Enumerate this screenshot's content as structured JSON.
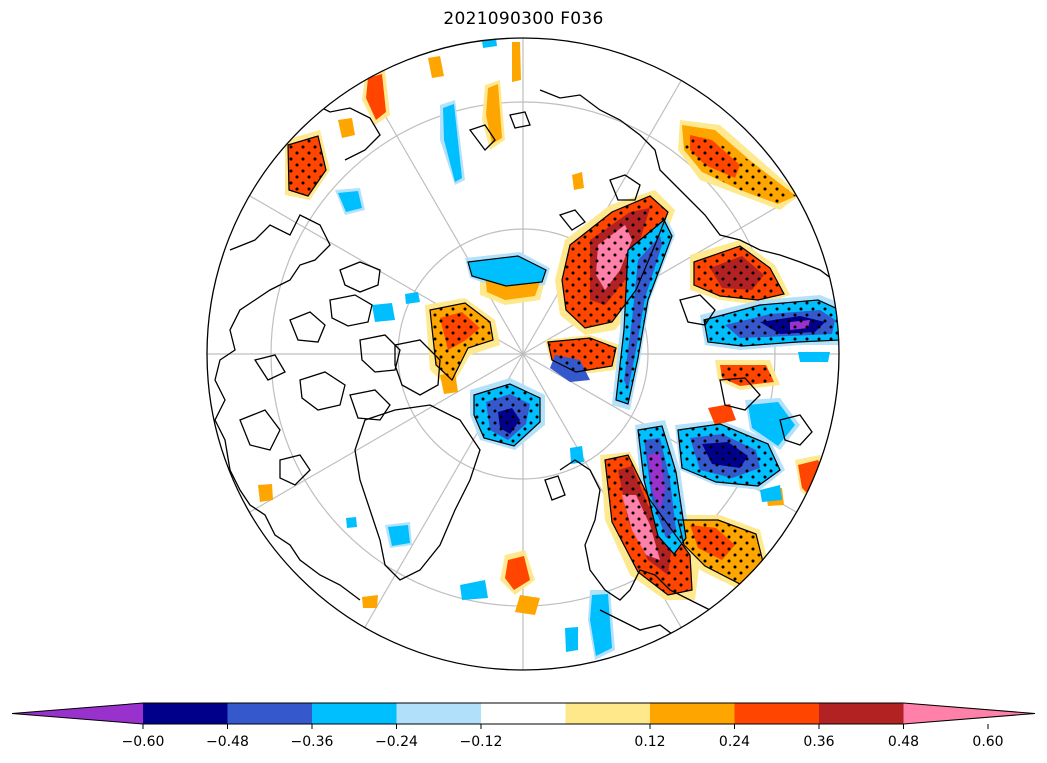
{
  "title": "2021090300 F036",
  "colorbar": {
    "ticks": [
      "−0.60",
      "−0.48",
      "−0.36",
      "−0.24",
      "−0.12",
      "0.12",
      "0.24",
      "0.36",
      "0.48",
      "0.60"
    ],
    "colors": [
      "#9932cc",
      "#00008b",
      "#3558cc",
      "#00bfff",
      "#b0e0fa",
      "#ffffff",
      "#ffe88a",
      "#ffa500",
      "#ff4500",
      "#b22222",
      "#ff80a8"
    ],
    "extend": "both"
  },
  "map": {
    "projection": "north-polar-stereographic",
    "land_outline_color": "#000000",
    "graticule_color": "#bbbbbb",
    "stipple_color": "#000000"
  }
}
